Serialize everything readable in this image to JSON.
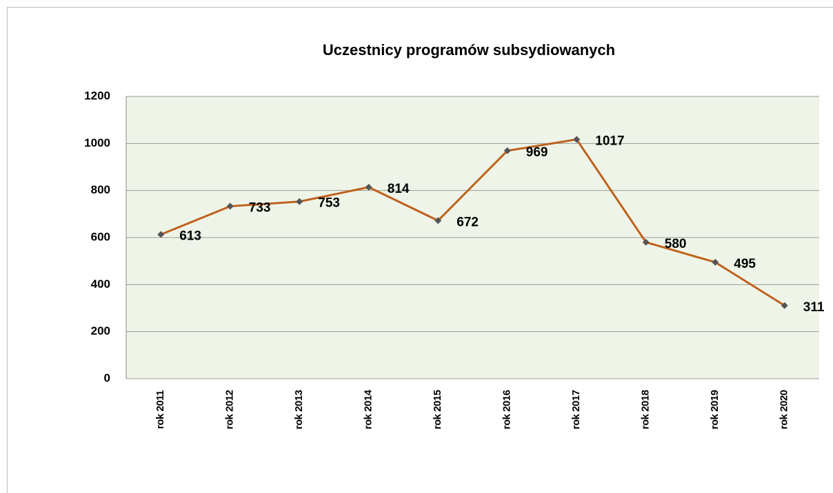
{
  "chart_data": {
    "type": "line",
    "title": "Uczestnicy programów subsydiowanych",
    "categories": [
      "rok 2011",
      "rok 2012",
      "rok 2013",
      "rok 2014",
      "rok 2015",
      "rok 2016",
      "rok 2017",
      "rok 2018",
      "rok 2019",
      "rok 2020"
    ],
    "series": [
      {
        "name": "Uczestnicy",
        "color": "#c0601c",
        "marker_color": "#555555",
        "values": [
          613,
          733,
          753,
          814,
          672,
          969,
          1017,
          580,
          495,
          311
        ]
      }
    ],
    "ylim": [
      0,
      1200
    ],
    "yticks": [
      0,
      200,
      400,
      600,
      800,
      1000,
      1200
    ],
    "grid": true,
    "data_labels": true
  }
}
